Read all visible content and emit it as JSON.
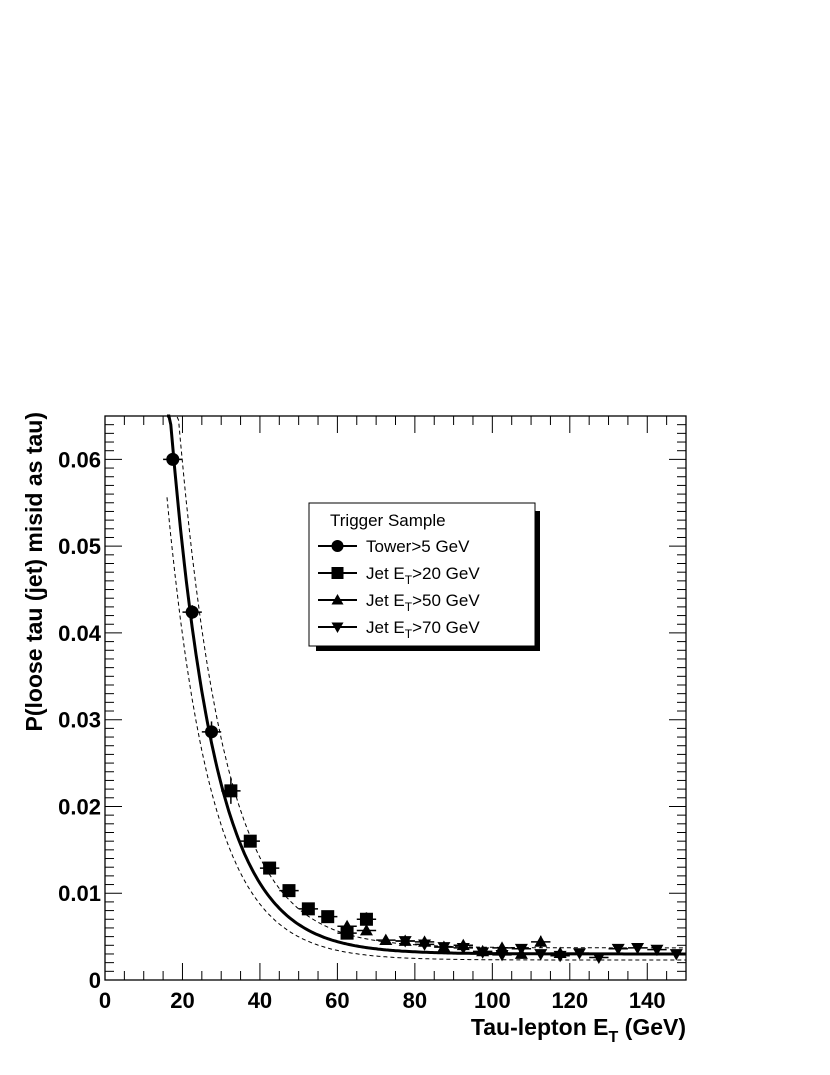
{
  "chart_data": {
    "type": "scatter",
    "xlabel": {
      "main": "Tau-lepton E",
      "sub": "T",
      "tail": " (GeV)"
    },
    "ylabel": "P(loose tau (jet) misid as tau)",
    "xlim": [
      0,
      150
    ],
    "ylim": [
      0,
      0.065
    ],
    "x_ticks": [
      0,
      20,
      40,
      60,
      80,
      100,
      120,
      140
    ],
    "y_ticks": [
      0,
      0.01,
      0.02,
      0.03,
      0.04,
      0.05,
      0.06
    ],
    "x_tick_labels": [
      "0",
      "20",
      "40",
      "60",
      "80",
      "100",
      "120",
      "140"
    ],
    "y_tick_labels": [
      "0",
      "0.01",
      "0.02",
      "0.03",
      "0.04",
      "0.05",
      "0.06"
    ],
    "legend": {
      "title": "Trigger Sample",
      "position": "top-right",
      "entries": [
        {
          "marker": "circle",
          "pre": "Tower>5 GeV",
          "sub": "",
          "post": ""
        },
        {
          "marker": "square",
          "pre": "Jet E",
          "sub": "T",
          "post": ">20 GeV"
        },
        {
          "marker": "triangle-up",
          "pre": "Jet E",
          "sub": "T",
          "post": ">50 GeV"
        },
        {
          "marker": "triangle-down",
          "pre": "Jet E",
          "sub": "T",
          "post": ">70 GeV"
        }
      ]
    },
    "series": [
      {
        "marker": "circle",
        "x": [
          17.5,
          22.5,
          27.5
        ],
        "y": [
          0.06,
          0.0424,
          0.0286
        ],
        "yerr": [
          0.0004,
          0.0008,
          0.0012
        ]
      },
      {
        "marker": "square",
        "x": [
          32.5,
          37.5,
          42.5,
          47.5,
          52.5,
          57.5,
          62.5,
          67.5
        ],
        "y": [
          0.0218,
          0.016,
          0.0129,
          0.0103,
          0.0082,
          0.0073,
          0.0054,
          0.007
        ],
        "yerr": [
          0.0015,
          0.0006,
          0.0004,
          0.0004,
          0.0004,
          0.0004,
          0.0004,
          0.0008
        ]
      },
      {
        "marker": "triangle-up",
        "x": [
          62.5,
          67.5,
          72.5,
          77.5,
          82.5,
          87.5,
          92.5,
          97.5,
          102.5,
          107.5,
          112.5,
          117.5
        ],
        "y": [
          0.0062,
          0.0057,
          0.0046,
          0.0045,
          0.0044,
          0.0038,
          0.004,
          0.0033,
          0.0037,
          0.003,
          0.0044,
          0.0031
        ],
        "yerr": [
          0.0005,
          0.0004,
          0.0004,
          0.0003,
          0.0004,
          0.0003,
          0.0004,
          0.0004,
          0.0004,
          0.0004,
          0.0007,
          0.0005
        ]
      },
      {
        "marker": "triangle-down",
        "x": [
          77.5,
          82.5,
          87.5,
          92.5,
          97.5,
          102.5,
          107.5,
          112.5,
          117.5,
          122.5,
          127.5,
          132.5,
          137.5,
          142.5,
          147.5
        ],
        "y": [
          0.0045,
          0.0041,
          0.0038,
          0.0037,
          0.0032,
          0.0029,
          0.0036,
          0.003,
          0.0028,
          0.0031,
          0.0026,
          0.0036,
          0.0037,
          0.0035,
          0.003
        ],
        "yerr": [
          0.0003,
          0.0003,
          0.0003,
          0.0003,
          0.0003,
          0.0003,
          0.0003,
          0.0003,
          0.0003,
          0.0003,
          0.0004,
          0.0003,
          0.0003,
          0.0003,
          0.0004
        ]
      }
    ],
    "fit": {
      "description": "exponential fit with upper and lower uncertainty band",
      "x_range": [
        16,
        150
      ],
      "central": {
        "a": 0.27,
        "b": 0.0875,
        "c": 0.003
      },
      "upper": {
        "a": 0.3,
        "b": 0.084,
        "c": 0.0037
      },
      "lower": {
        "a": 0.218,
        "b": 0.088,
        "c": 0.0023
      },
      "upper_x_start": 17,
      "lower_x_start": 16
    },
    "grid": false
  }
}
